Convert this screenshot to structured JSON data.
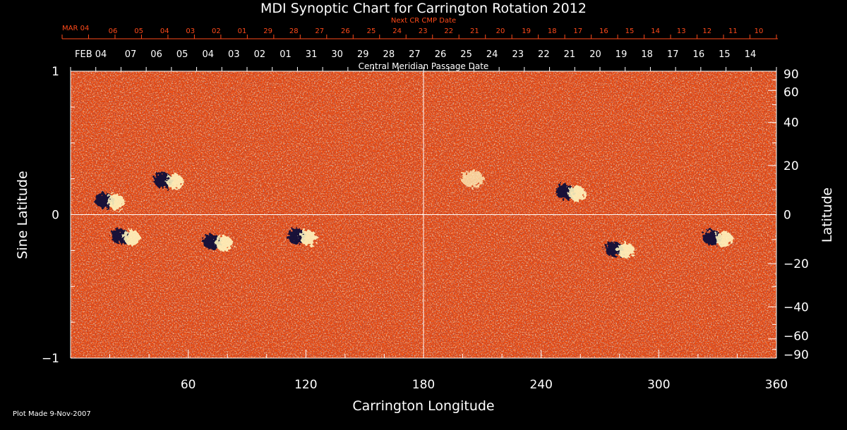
{
  "chart_data": {
    "type": "heatmap",
    "title": "MDI Synoptic Chart for Carrington Rotation 2012",
    "xlabel": "Carrington Longitude",
    "ylabel_left": "Sine Latitude",
    "ylabel_right": "Latitude",
    "xlim": [
      0,
      360
    ],
    "ylim": [
      -1,
      1
    ],
    "x_ticks": [
      60,
      120,
      180,
      240,
      300,
      360
    ],
    "left_ticks": [
      {
        "value": 1,
        "label": "1"
      },
      {
        "value": 0,
        "label": "0"
      },
      {
        "value": -1,
        "label": "−1"
      }
    ],
    "right_ticks": [
      {
        "lat": 90,
        "label": "90"
      },
      {
        "lat": 60,
        "label": "60"
      },
      {
        "lat": 40,
        "label": "40"
      },
      {
        "lat": 20,
        "label": "20"
      },
      {
        "lat": 0,
        "label": "0"
      },
      {
        "lat": -20,
        "label": "−20"
      },
      {
        "lat": -40,
        "label": "−40"
      },
      {
        "lat": -60,
        "label": "−60"
      },
      {
        "lat": -90,
        "label": "−90"
      }
    ],
    "top_axis_label": "Next CR CMP Date",
    "top_axis_month": "MAR 04",
    "top_axis_dates": [
      "06",
      "05",
      "04",
      "03",
      "02",
      "01",
      "29",
      "28",
      "27",
      "26",
      "25",
      "24",
      "23",
      "22",
      "21",
      "20",
      "19",
      "18",
      "17",
      "16",
      "15",
      "14",
      "13",
      "12",
      "11",
      "10"
    ],
    "cmp_label": "Central Meridian Passage Date",
    "cmp_month": "FEB 04",
    "cmp_dates": [
      "07",
      "06",
      "05",
      "04",
      "03",
      "02",
      "01",
      "31",
      "30",
      "29",
      "28",
      "27",
      "26",
      "25",
      "24",
      "23",
      "22",
      "21",
      "20",
      "19",
      "18",
      "17",
      "16",
      "15",
      "14"
    ],
    "guide_lines": {
      "longitude": 180,
      "sine_latitude": 0
    },
    "colors": {
      "background": "#000000",
      "field_base": "#f04a0a",
      "positive_polarity": "#fff6c0",
      "negative_polarity": "#0a0a3a",
      "top_axis": "#ff4a1a",
      "axis": "#ffffff"
    },
    "active_regions": [
      {
        "lon": 50,
        "sinlat": 0.24,
        "polarity": "mixed"
      },
      {
        "lon": 28,
        "sinlat": -0.15,
        "polarity": "mixed"
      },
      {
        "lon": 75,
        "sinlat": -0.19,
        "polarity": "mixed"
      },
      {
        "lon": 118,
        "sinlat": -0.15,
        "polarity": "mixed"
      },
      {
        "lon": 255,
        "sinlat": 0.16,
        "polarity": "mixed"
      },
      {
        "lon": 280,
        "sinlat": -0.24,
        "polarity": "mixed"
      },
      {
        "lon": 330,
        "sinlat": -0.16,
        "polarity": "mixed"
      },
      {
        "lon": 20,
        "sinlat": 0.1,
        "polarity": "mixed"
      },
      {
        "lon": 205,
        "sinlat": 0.25,
        "polarity": "positive"
      }
    ]
  },
  "footer": {
    "plot_made": "Plot Made  9-Nov-2007"
  }
}
